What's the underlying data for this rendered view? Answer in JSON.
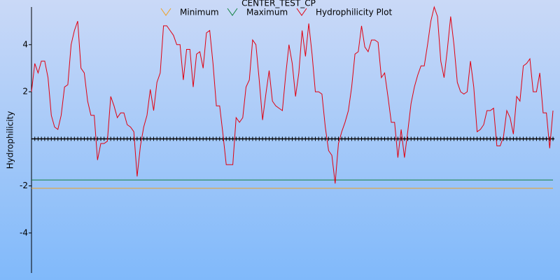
{
  "chart_data": {
    "type": "line",
    "title": "CENTER_TEST_CP",
    "ylabel": "Hydrophilicity",
    "ylim": [
      -5.7,
      5.6
    ],
    "yticks": [
      -4,
      -2,
      2,
      4
    ],
    "series": [
      {
        "name": "Minimum",
        "color": "#f0a020",
        "value": -2.1
      },
      {
        "name": "Maximum",
        "color": "#108040",
        "value": -1.75
      },
      {
        "name": "Hydrophilicity Plot",
        "color": "#e00010",
        "values": [
          2.0,
          3.2,
          2.8,
          3.3,
          3.3,
          2.6,
          1.0,
          0.5,
          0.4,
          1.0,
          2.2,
          2.3,
          4.0,
          4.6,
          5.0,
          3.0,
          2.8,
          1.6,
          1.0,
          1.0,
          -0.9,
          -0.2,
          -0.2,
          -0.1,
          1.8,
          1.4,
          0.9,
          1.1,
          1.1,
          0.6,
          0.5,
          0.3,
          -1.6,
          -0.3,
          0.5,
          1.0,
          2.1,
          1.2,
          2.4,
          2.8,
          4.8,
          4.8,
          4.6,
          4.4,
          4.0,
          4.0,
          2.5,
          3.8,
          3.8,
          2.2,
          3.6,
          3.7,
          3.0,
          4.5,
          4.6,
          3.2,
          1.4,
          1.4,
          0.2,
          -1.1,
          -1.1,
          -1.1,
          0.9,
          0.7,
          0.9,
          2.2,
          2.5,
          4.2,
          4.0,
          2.5,
          0.8,
          1.9,
          2.9,
          1.6,
          1.4,
          1.3,
          1.2,
          2.7,
          4.0,
          3.2,
          1.8,
          2.8,
          4.6,
          3.5,
          4.9,
          3.6,
          2.0,
          2.0,
          1.9,
          0.5,
          -0.5,
          -0.7,
          -1.9,
          -0.2,
          0.3,
          0.7,
          1.2,
          2.2,
          3.6,
          3.7,
          4.8,
          3.9,
          3.7,
          4.2,
          4.2,
          4.1,
          2.6,
          2.8,
          1.8,
          0.7,
          0.7,
          -0.8,
          0.4,
          -0.8,
          0.3,
          1.5,
          2.2,
          2.7,
          3.1,
          3.1,
          4.0,
          5.0,
          5.6,
          5.2,
          3.3,
          2.6,
          3.8,
          5.2,
          4.0,
          2.4,
          2.0,
          1.9,
          2.0,
          3.3,
          2.2,
          0.3,
          0.4,
          0.6,
          1.2,
          1.2,
          1.3,
          -0.3,
          -0.3,
          0.1,
          1.2,
          0.9,
          0.2,
          1.8,
          1.6,
          3.1,
          3.2,
          3.4,
          2.0,
          2.0,
          2.8,
          1.1,
          1.1,
          -0.4,
          1.2
        ]
      }
    ]
  }
}
